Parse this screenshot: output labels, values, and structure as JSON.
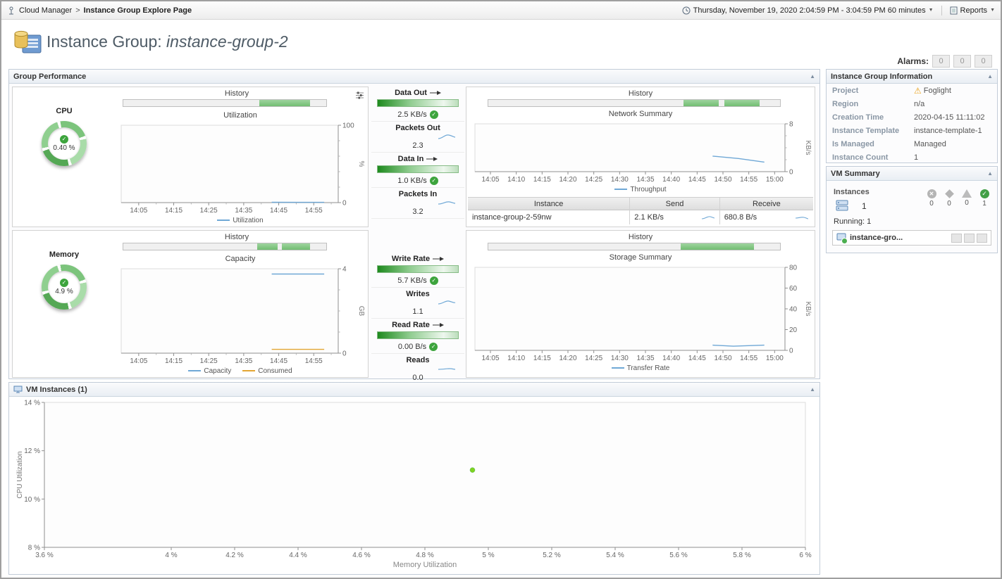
{
  "icons": {
    "collapse_arrow": "▲",
    "dropdown_arrow": "▼",
    "breadcrumb_separator": ">",
    "check": "✓",
    "warning": "⚠",
    "fatal_x": "✕"
  },
  "topbar": {
    "breadcrumb_root": "Cloud Manager",
    "breadcrumb_current": "Instance Group Explore Page",
    "time_range": "Thursday, November 19, 2020 2:04:59 PM - 3:04:59 PM 60 minutes",
    "reports_label": "Reports"
  },
  "header": {
    "title_prefix": "Instance Group: ",
    "title_name": "instance-group-2",
    "alarms_label": "Alarms:",
    "alarm_counts": [
      "0",
      "0",
      "0"
    ]
  },
  "group_performance": {
    "title": "Group Performance",
    "cpu": {
      "history_label": "History",
      "gauge_label": "CPU",
      "gauge_value": "0.40 %",
      "history_segments": [
        {
          "from": 0.67,
          "to": 0.92
        }
      ]
    },
    "memory": {
      "history_label": "History",
      "gauge_label": "Memory",
      "gauge_value": "4.9 %",
      "history_segments": [
        {
          "from": 0.66,
          "to": 0.76
        },
        {
          "from": 0.78,
          "to": 0.92
        }
      ]
    },
    "network": {
      "history_label": "History",
      "history_segments": [
        {
          "from": 0.67,
          "to": 0.79
        },
        {
          "from": 0.81,
          "to": 0.93
        }
      ],
      "table_headers": [
        "Instance",
        "Send",
        "Receive"
      ],
      "table_row": {
        "instance": "instance-group-2-59nw",
        "send": "2.1 KB/s",
        "receive": "680.8 B/s"
      }
    },
    "storage": {
      "history_label": "History",
      "history_segments": [
        {
          "from": 0.66,
          "to": 0.91
        }
      ]
    },
    "metrics": [
      {
        "label": "Data Out",
        "value": "2.5 KB/s"
      },
      {
        "label": "Packets Out",
        "value": "2.3"
      },
      {
        "label": "Data In",
        "value": "1.0 KB/s"
      },
      {
        "label": "Packets In",
        "value": "3.2"
      },
      {
        "label": "Write Rate",
        "value": "5.7 KB/s"
      },
      {
        "label": "Writes",
        "value": "1.1"
      },
      {
        "label": "Read Rate",
        "value": "0.00 B/s"
      },
      {
        "label": "Reads",
        "value": "0.0"
      }
    ]
  },
  "vm_instances": {
    "title": "VM Instances (1)"
  },
  "sidebar": {
    "info_title": "Instance Group Information",
    "info_rows": [
      {
        "label": "Project",
        "value": "Foglight"
      },
      {
        "label": "Region",
        "value": "n/a"
      },
      {
        "label": "Creation Time",
        "value": "2020-04-15 11:11:02"
      },
      {
        "label": "Instance Template",
        "value": "instance-template-1"
      },
      {
        "label": "Is Managed",
        "value": "Managed"
      },
      {
        "label": "Instance Count",
        "value": "1"
      }
    ],
    "vm_summary_title": "VM Summary",
    "instances_label": "Instances",
    "instance_total": "1",
    "status_counts": [
      "0",
      "0",
      "0",
      "1"
    ],
    "running_label": "Running: 1",
    "instance_item_name": "instance-gro..."
  },
  "chart_data": {
    "cpu_utilization": {
      "type": "line",
      "title": "Utilization",
      "ylabel": "%",
      "y_side": "right",
      "xlim": [
        0,
        62
      ],
      "ylim": [
        0,
        100
      ],
      "x_ticks": [
        {
          "v": 5,
          "t": "14:05"
        },
        {
          "v": 15,
          "t": "14:15"
        },
        {
          "v": 25,
          "t": "14:25"
        },
        {
          "v": 35,
          "t": "14:35"
        },
        {
          "v": 45,
          "t": "14:45"
        },
        {
          "v": 55,
          "t": "14:55"
        }
      ],
      "x_minor": [
        10,
        20,
        30,
        40,
        50,
        60
      ],
      "y_ticks": [
        {
          "v": 0,
          "t": "0"
        },
        {
          "v": 100,
          "t": "100"
        }
      ],
      "y_minor": [
        20,
        40,
        60,
        80
      ],
      "legend": [
        {
          "label": "Utilization",
          "color": "#6fa8d6"
        }
      ],
      "series": [
        {
          "name": "Utilization",
          "color": "#6fa8d6",
          "points": [
            [
              43,
              0.5
            ],
            [
              50,
              0.4
            ],
            [
              58,
              0.4
            ]
          ]
        }
      ]
    },
    "memory_capacity": {
      "type": "line",
      "title": "Capacity",
      "ylabel": "GB",
      "y_side": "right",
      "xlim": [
        0,
        62
      ],
      "ylim": [
        0,
        4
      ],
      "x_ticks": [
        {
          "v": 5,
          "t": "14:05"
        },
        {
          "v": 15,
          "t": "14:15"
        },
        {
          "v": 25,
          "t": "14:25"
        },
        {
          "v": 35,
          "t": "14:35"
        },
        {
          "v": 45,
          "t": "14:45"
        },
        {
          "v": 55,
          "t": "14:55"
        }
      ],
      "x_minor": [
        10,
        20,
        30,
        40,
        50,
        60
      ],
      "y_ticks": [
        {
          "v": 0,
          "t": "0"
        },
        {
          "v": 4,
          "t": "4"
        }
      ],
      "y_minor": [
        1,
        2,
        3
      ],
      "legend": [
        {
          "label": "Capacity",
          "color": "#6fa8d6"
        },
        {
          "label": "Consumed",
          "color": "#e3a633"
        }
      ],
      "series": [
        {
          "name": "Capacity",
          "color": "#6fa8d6",
          "points": [
            [
              43,
              3.75
            ],
            [
              58,
              3.75
            ]
          ]
        },
        {
          "name": "Consumed",
          "color": "#e3a633",
          "points": [
            [
              43,
              0.18
            ],
            [
              58,
              0.18
            ]
          ]
        }
      ]
    },
    "network_summary": {
      "type": "line",
      "title": "Network Summary",
      "ylabel": "KB/s",
      "y_side": "right",
      "xlim": [
        2,
        62
      ],
      "ylim": [
        0,
        8
      ],
      "x_ticks": [
        {
          "v": 5,
          "t": "14:05"
        },
        {
          "v": 10,
          "t": "14:10"
        },
        {
          "v": 15,
          "t": "14:15"
        },
        {
          "v": 20,
          "t": "14:20"
        },
        {
          "v": 25,
          "t": "14:25"
        },
        {
          "v": 30,
          "t": "14:30"
        },
        {
          "v": 35,
          "t": "14:35"
        },
        {
          "v": 40,
          "t": "14:40"
        },
        {
          "v": 45,
          "t": "14:45"
        },
        {
          "v": 50,
          "t": "14:50"
        },
        {
          "v": 55,
          "t": "14:55"
        },
        {
          "v": 60,
          "t": "15:00"
        }
      ],
      "y_ticks": [
        {
          "v": 0,
          "t": "0"
        },
        {
          "v": 8,
          "t": "8"
        }
      ],
      "y_minor": [
        2,
        4,
        6
      ],
      "legend": [
        {
          "label": "Throughput",
          "color": "#6fa8d6"
        }
      ],
      "series": [
        {
          "name": "Throughput",
          "color": "#6fa8d6",
          "points": [
            [
              48,
              2.6
            ],
            [
              53,
              2.2
            ],
            [
              58,
              1.6
            ]
          ]
        }
      ]
    },
    "storage_summary": {
      "type": "line",
      "title": "Storage Summary",
      "ylabel": "KB/s",
      "y_side": "right",
      "xlim": [
        2,
        62
      ],
      "ylim": [
        0,
        80
      ],
      "x_ticks": [
        {
          "v": 5,
          "t": "14:05"
        },
        {
          "v": 10,
          "t": "14:10"
        },
        {
          "v": 15,
          "t": "14:15"
        },
        {
          "v": 20,
          "t": "14:20"
        },
        {
          "v": 25,
          "t": "14:25"
        },
        {
          "v": 30,
          "t": "14:30"
        },
        {
          "v": 35,
          "t": "14:35"
        },
        {
          "v": 40,
          "t": "14:40"
        },
        {
          "v": 45,
          "t": "14:45"
        },
        {
          "v": 50,
          "t": "14:50"
        },
        {
          "v": 55,
          "t": "14:55"
        },
        {
          "v": 60,
          "t": "15:00"
        }
      ],
      "y_ticks": [
        {
          "v": 0,
          "t": "0"
        },
        {
          "v": 20,
          "t": "20"
        },
        {
          "v": 40,
          "t": "40"
        },
        {
          "v": 60,
          "t": "60"
        },
        {
          "v": 80,
          "t": "80"
        }
      ],
      "legend": [
        {
          "label": "Transfer Rate",
          "color": "#6fa8d6"
        }
      ],
      "series": [
        {
          "name": "Transfer Rate",
          "color": "#6fa8d6",
          "points": [
            [
              48,
              5
            ],
            [
              52,
              4
            ],
            [
              58,
              5
            ]
          ]
        }
      ]
    },
    "vm_scatter": {
      "type": "scatter",
      "xlabel": "Memory Utilization",
      "ylabel": "CPU Utilization",
      "y_side": "left",
      "xlim": [
        3.6,
        6.0
      ],
      "ylim": [
        8,
        14
      ],
      "x_ticks": [
        {
          "v": 3.6,
          "t": "3.6 %"
        },
        {
          "v": 4,
          "t": "4 %"
        },
        {
          "v": 4.2,
          "t": "4.2 %"
        },
        {
          "v": 4.4,
          "t": "4.4 %"
        },
        {
          "v": 4.6,
          "t": "4.6 %"
        },
        {
          "v": 4.8,
          "t": "4.8 %"
        },
        {
          "v": 5,
          "t": "5 %"
        },
        {
          "v": 5.2,
          "t": "5.2 %"
        },
        {
          "v": 5.4,
          "t": "5.4 %"
        },
        {
          "v": 5.6,
          "t": "5.6 %"
        },
        {
          "v": 5.8,
          "t": "5.8 %"
        },
        {
          "v": 6,
          "t": "6 %"
        }
      ],
      "y_ticks": [
        {
          "v": 8,
          "t": "8 %"
        },
        {
          "v": 10,
          "t": "10 %"
        },
        {
          "v": 12,
          "t": "12 %"
        },
        {
          "v": 14,
          "t": "14 %"
        }
      ],
      "series": [
        {
          "name": "VM Instances",
          "color": "#7ed321",
          "points": [
            [
              4.95,
              11.2
            ]
          ]
        }
      ]
    }
  }
}
